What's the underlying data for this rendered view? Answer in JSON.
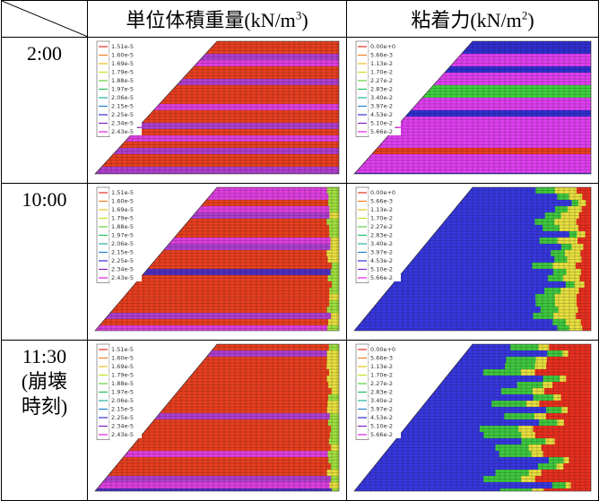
{
  "header": {
    "corner": "",
    "weight": {
      "text": "単位体積重量(kN/m",
      "sup": "3",
      "close": ")"
    },
    "cohesion": {
      "text": "粘着力(kN/m",
      "sup": "2",
      "close": ")"
    }
  },
  "rows": [
    {
      "lines": [
        "2:00"
      ]
    },
    {
      "lines": [
        "10:00"
      ]
    },
    {
      "lines": [
        "11:30",
        "(崩壊",
        "時刻)"
      ]
    }
  ],
  "legends": {
    "weight": [
      "1.51e-5",
      "1.60e-5",
      "1.69e-5",
      "1.79e-5",
      "1.88e-5",
      "1.97e-5",
      "2.06e-5",
      "2.15e-5",
      "2.25e-5",
      "2.34e-5",
      "2.43e-5"
    ],
    "cohesion": [
      "0.00e+0",
      "5.66e-3",
      "1.13e-2",
      "1.70e-2",
      "2.27e-2",
      "2.83e-2",
      "3.40e-2",
      "3.97e-2",
      "4.53e-2",
      "5.10e-2",
      "5.66e-2"
    ]
  }
}
